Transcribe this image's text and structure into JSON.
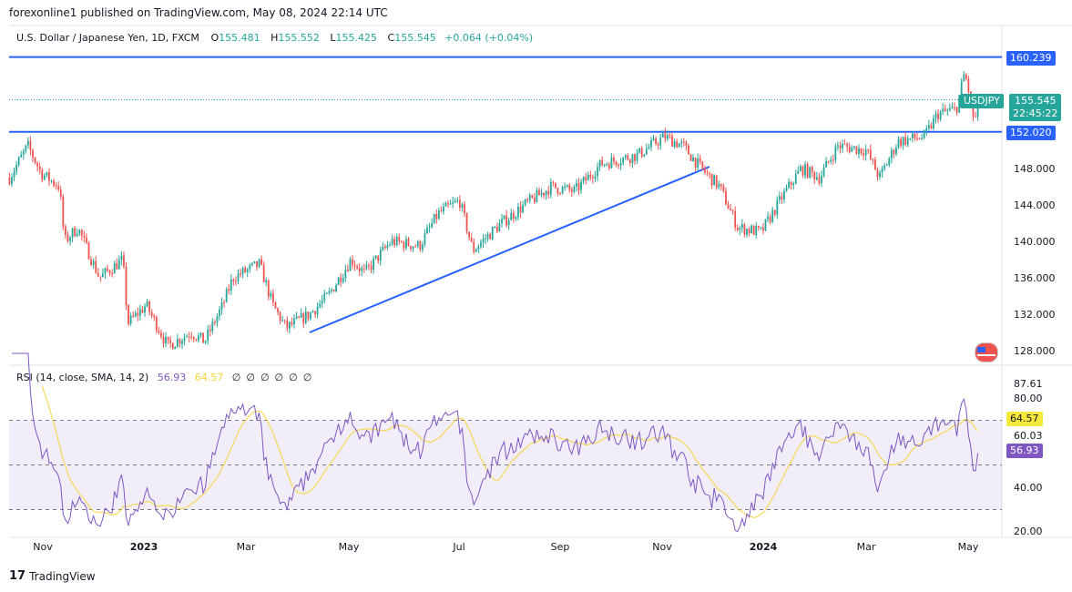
{
  "header": {
    "published": "forexonline1 published on TradingView.com, May 08, 2024 22:14 UTC"
  },
  "legend": {
    "symbol": "U.S. Dollar / Japanese Yen, 1D, FXCM",
    "o_label": "O",
    "open": "155.481",
    "h_label": "H",
    "high": "155.552",
    "l_label": "L",
    "low": "155.425",
    "c_label": "C",
    "close": "155.545",
    "change": "+0.064 (+0.04%)"
  },
  "rsi_legend": {
    "title": "RSI (14, close, SMA, 14, 2)",
    "rsi": "56.93",
    "sma": "64.57",
    "empty": [
      "∅",
      "∅",
      "∅",
      "∅",
      "∅",
      "∅"
    ]
  },
  "price_axis": {
    "ticks": [
      "148.000",
      "144.000",
      "140.000",
      "136.000",
      "132.000",
      "128.000"
    ],
    "level_high": "160.239",
    "level_low": "152.020",
    "symbol_badge": "USDJPY",
    "last_price": "155.545",
    "countdown": "22:45:22"
  },
  "rsi_axis": {
    "ticks": [
      "87.61",
      "80.00",
      "60.03",
      "40.00",
      "20.00"
    ],
    "sma_tag": "64.57",
    "rsi_tag": "56.93"
  },
  "time_axis": [
    {
      "label": "Nov",
      "bold": false
    },
    {
      "label": "2023",
      "bold": true
    },
    {
      "label": "Mar",
      "bold": false
    },
    {
      "label": "May",
      "bold": false
    },
    {
      "label": "Jul",
      "bold": false
    },
    {
      "label": "Sep",
      "bold": false
    },
    {
      "label": "Nov",
      "bold": false
    },
    {
      "label": "2024",
      "bold": true
    },
    {
      "label": "Mar",
      "bold": false
    },
    {
      "label": "May",
      "bold": false
    }
  ],
  "footer": {
    "brand": "TradingView"
  },
  "colors": {
    "up": "#26a69a",
    "down": "#ef5350",
    "level": "#2962ff",
    "rsi": "#7e57c2",
    "sma": "#f7d33a"
  },
  "chart_data": {
    "type": "candlestick",
    "title": "U.S. Dollar / Japanese Yen, 1D, FXCM",
    "anchors_note": "days since 2022-11-01, approximate close",
    "anchors": [
      [
        -20,
        147
      ],
      [
        -9,
        150.5
      ],
      [
        -1,
        147.5
      ],
      [
        10,
        146
      ],
      [
        13,
        140
      ],
      [
        21,
        141.5
      ],
      [
        34,
        136
      ],
      [
        48,
        138
      ],
      [
        51,
        131
      ],
      [
        62,
        133
      ],
      [
        75,
        128.5
      ],
      [
        89,
        130
      ],
      [
        97,
        129
      ],
      [
        108,
        133
      ],
      [
        114,
        136
      ],
      [
        130,
        137.5
      ],
      [
        138,
        133
      ],
      [
        146,
        130.5
      ],
      [
        160,
        132
      ],
      [
        171,
        134
      ],
      [
        185,
        138
      ],
      [
        193,
        136.5
      ],
      [
        209,
        140
      ],
      [
        226,
        139.5
      ],
      [
        237,
        143
      ],
      [
        250,
        144.5
      ],
      [
        258,
        139
      ],
      [
        272,
        141.5
      ],
      [
        289,
        144
      ],
      [
        305,
        146
      ],
      [
        319,
        145.5
      ],
      [
        335,
        148.5
      ],
      [
        357,
        149.5
      ],
      [
        373,
        151.5
      ],
      [
        384,
        150.5
      ],
      [
        395,
        148
      ],
      [
        406,
        146
      ],
      [
        417,
        141.5
      ],
      [
        431,
        141
      ],
      [
        444,
        145
      ],
      [
        455,
        148
      ],
      [
        466,
        147
      ],
      [
        477,
        150.5
      ],
      [
        494,
        150
      ],
      [
        502,
        147
      ],
      [
        513,
        151
      ],
      [
        529,
        151.5
      ],
      [
        537,
        154
      ],
      [
        548,
        154.5
      ],
      [
        553,
        158.5
      ],
      [
        555,
        157
      ],
      [
        559,
        153
      ],
      [
        562,
        155.5
      ]
    ],
    "levels": [
      160.239,
      152.02
    ],
    "trendline": [
      [
        160,
        130
      ],
      [
        400,
        148.2
      ]
    ],
    "ylim": [
      126,
      162
    ],
    "rsi_ylim": [
      15,
      92
    ],
    "rsi_bands": [
      30,
      70
    ]
  }
}
